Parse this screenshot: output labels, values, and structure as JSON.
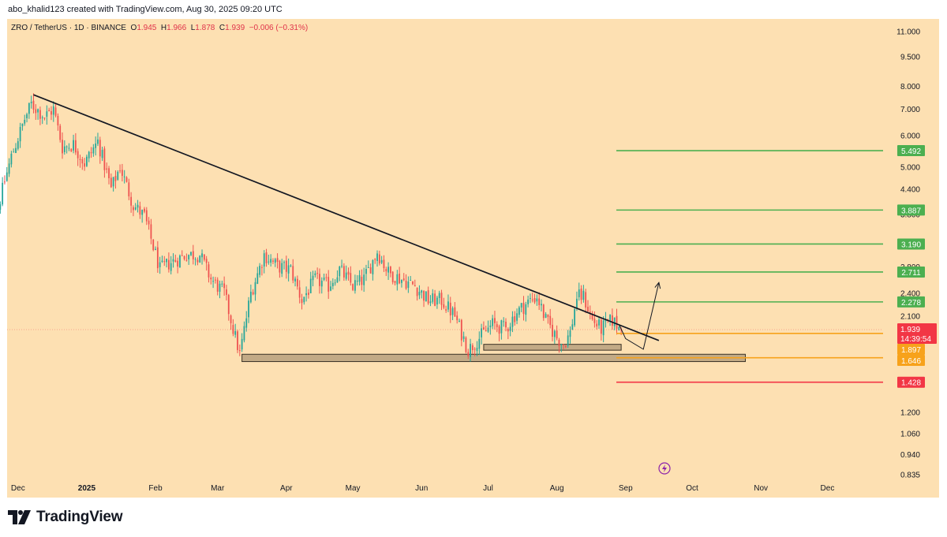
{
  "header": {
    "credit": "abo_khalid123 created with TradingView.com, Aug 30, 2025 09:20 UTC"
  },
  "legend": {
    "symbol": "ZRO / TetherUS · 1D · BINANCE",
    "o_label": "O",
    "o_value": "1.945",
    "h_label": "H",
    "h_value": "1.966",
    "l_label": "L",
    "l_value": "1.878",
    "c_label": "C",
    "c_value": "1.939",
    "change": "−0.006 (−0.31%)"
  },
  "footer": {
    "brand": "TradingView"
  },
  "chart_data": {
    "type": "candlestick",
    "y_scale": "log",
    "ylim": [
      0.83,
      11.6
    ],
    "y_ticks": [
      {
        "label": "11.000",
        "value": 11.0
      },
      {
        "label": "9.500",
        "value": 9.5
      },
      {
        "label": "8.000",
        "value": 8.0
      },
      {
        "label": "7.000",
        "value": 7.0
      },
      {
        "label": "6.000",
        "value": 6.0
      },
      {
        "label": "5.000",
        "value": 5.0
      },
      {
        "label": "4.400",
        "value": 4.4
      },
      {
        "label": "3.800",
        "value": 3.8
      },
      {
        "label": "2.800",
        "value": 2.8
      },
      {
        "label": "2.400",
        "value": 2.4
      },
      {
        "label": "2.100",
        "value": 2.1
      },
      {
        "label": "1.200",
        "value": 1.2
      },
      {
        "label": "1.060",
        "value": 1.06
      },
      {
        "label": "0.940",
        "value": 0.94
      },
      {
        "label": "0.835",
        "value": 0.835
      }
    ],
    "x_ticks": [
      {
        "label": "Dec",
        "date": "2024-12-01"
      },
      {
        "label": "2025",
        "date": "2025-01-01",
        "bold": true
      },
      {
        "label": "Feb",
        "date": "2025-02-01"
      },
      {
        "label": "Mar",
        "date": "2025-03-01"
      },
      {
        "label": "Apr",
        "date": "2025-04-01"
      },
      {
        "label": "May",
        "date": "2025-05-01"
      },
      {
        "label": "Jun",
        "date": "2025-06-01"
      },
      {
        "label": "Jul",
        "date": "2025-07-01"
      },
      {
        "label": "Aug",
        "date": "2025-08-01"
      },
      {
        "label": "Sep",
        "date": "2025-09-01"
      },
      {
        "label": "Oct",
        "date": "2025-10-01"
      },
      {
        "label": "Nov",
        "date": "2025-11-01"
      },
      {
        "label": "Dec",
        "date": "2025-12-01"
      }
    ],
    "start_date": "2024-11-15",
    "last_date": "2025-08-30",
    "close_anchors": [
      [
        "2024-11-15",
        3.6
      ],
      [
        "2024-11-20",
        3.55
      ],
      [
        "2024-11-25",
        4.6
      ],
      [
        "2024-11-28",
        5.3
      ],
      [
        "2024-12-04",
        6.6
      ],
      [
        "2024-12-07",
        7.2
      ],
      [
        "2024-12-13",
        6.7
      ],
      [
        "2024-12-17",
        7.0
      ],
      [
        "2024-12-21",
        5.6
      ],
      [
        "2024-12-26",
        5.7
      ],
      [
        "2024-12-31",
        5.1
      ],
      [
        "2025-01-06",
        5.8
      ],
      [
        "2025-01-12",
        4.4
      ],
      [
        "2025-01-16",
        5.0
      ],
      [
        "2025-01-22",
        4.0
      ],
      [
        "2025-01-27",
        3.75
      ],
      [
        "2025-02-03",
        2.75
      ],
      [
        "2025-02-07",
        2.85
      ],
      [
        "2025-02-15",
        3.0
      ],
      [
        "2025-02-21",
        3.0
      ],
      [
        "2025-02-26",
        2.6
      ],
      [
        "2025-03-04",
        2.4
      ],
      [
        "2025-03-08",
        1.95
      ],
      [
        "2025-03-11",
        1.68
      ],
      [
        "2025-03-16",
        2.4
      ],
      [
        "2025-03-22",
        3.0
      ],
      [
        "2025-03-28",
        2.8
      ],
      [
        "2025-04-03",
        2.75
      ],
      [
        "2025-04-08",
        2.3
      ],
      [
        "2025-04-14",
        2.6
      ],
      [
        "2025-04-20",
        2.5
      ],
      [
        "2025-04-25",
        2.75
      ],
      [
        "2025-05-01",
        2.5
      ],
      [
        "2025-05-06",
        2.6
      ],
      [
        "2025-05-12",
        3.05
      ],
      [
        "2025-05-17",
        2.7
      ],
      [
        "2025-05-23",
        2.6
      ],
      [
        "2025-05-29",
        2.5
      ],
      [
        "2025-06-04",
        2.3
      ],
      [
        "2025-06-10",
        2.3
      ],
      [
        "2025-06-16",
        2.1
      ],
      [
        "2025-06-22",
        1.72
      ],
      [
        "2025-06-27",
        1.85
      ],
      [
        "2025-07-03",
        2.0
      ],
      [
        "2025-07-09",
        1.95
      ],
      [
        "2025-07-14",
        2.15
      ],
      [
        "2025-07-20",
        2.3
      ],
      [
        "2025-07-23",
        2.35
      ],
      [
        "2025-07-27",
        2.05
      ],
      [
        "2025-08-01",
        1.85
      ],
      [
        "2025-08-04",
        1.78
      ],
      [
        "2025-08-07",
        1.9
      ],
      [
        "2025-08-10",
        2.35
      ],
      [
        "2025-08-13",
        2.35
      ],
      [
        "2025-08-17",
        2.05
      ],
      [
        "2025-08-21",
        1.95
      ],
      [
        "2025-08-26",
        2.05
      ],
      [
        "2025-08-30",
        1.939
      ]
    ],
    "levels": [
      {
        "label": "5.492",
        "value": 5.492,
        "color": "#4caf50"
      },
      {
        "label": "3.887",
        "value": 3.887,
        "color": "#4caf50"
      },
      {
        "label": "3.190",
        "value": 3.19,
        "color": "#4caf50"
      },
      {
        "label": "2.711",
        "value": 2.711,
        "color": "#4caf50"
      },
      {
        "label": "2.278",
        "value": 2.278,
        "color": "#4caf50"
      },
      {
        "label": "1.897",
        "value": 1.897,
        "color": "#f7a21b"
      },
      {
        "label": "1.646",
        "value": 1.646,
        "color": "#f7a21b"
      },
      {
        "label": "1.428",
        "value": 1.428,
        "color": "#f23645"
      }
    ],
    "current_price": {
      "label": "1.939",
      "value": 1.939,
      "countdown": "14:39:54",
      "color": "#f23645"
    },
    "trendline": {
      "from": [
        "2024-12-08",
        7.6
      ],
      "to": [
        "2025-09-16",
        1.82
      ]
    },
    "zones": [
      {
        "from": "2025-03-12",
        "to": "2025-10-25",
        "low": 1.61,
        "high": 1.68
      },
      {
        "from": "2025-06-29",
        "to": "2025-08-30",
        "low": 1.72,
        "high": 1.78
      }
    ],
    "projection": [
      [
        "2025-08-29",
        2.0
      ],
      [
        "2025-09-01",
        1.84
      ],
      [
        "2025-09-09",
        1.73
      ],
      [
        "2025-09-16",
        2.55
      ]
    ],
    "colors": {
      "up": "#26a69a",
      "down": "#ef5350",
      "trend": "#131722"
    }
  }
}
